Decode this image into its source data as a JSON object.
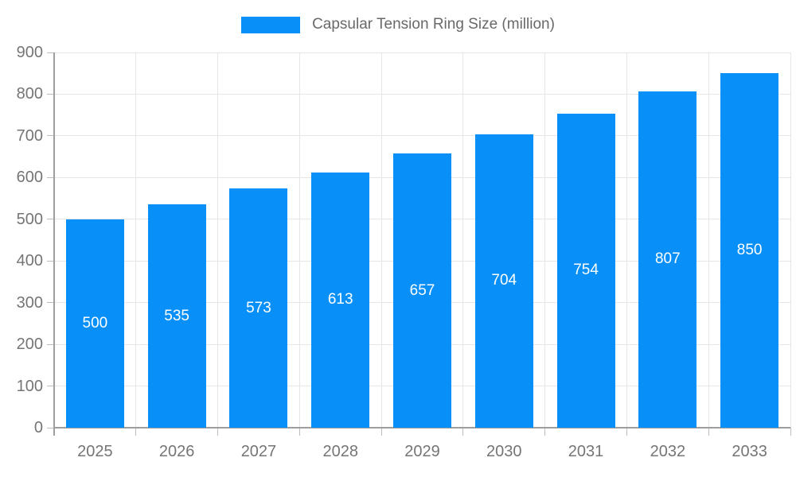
{
  "legend": {
    "label": "Capsular Tension Ring Size (million)"
  },
  "chart_data": {
    "type": "bar",
    "title": "",
    "xlabel": "",
    "ylabel": "",
    "series_name": "Capsular Tension Ring Size (million)",
    "categories": [
      "2025",
      "2026",
      "2027",
      "2028",
      "2029",
      "2030",
      "2031",
      "2032",
      "2033"
    ],
    "values": [
      500,
      535,
      573,
      613,
      657,
      704,
      754,
      807,
      850
    ],
    "ylim": [
      0,
      900
    ],
    "yticks": [
      0,
      100,
      200,
      300,
      400,
      500,
      600,
      700,
      800,
      900
    ],
    "grid": true,
    "legend_position": "top-center",
    "bar_color": "#0890F8",
    "bar_label_color": "#ffffff",
    "axis_text_color": "#757575",
    "gridline_color": "#e6e6e6",
    "axis_line_color": "#9e9e9e"
  }
}
